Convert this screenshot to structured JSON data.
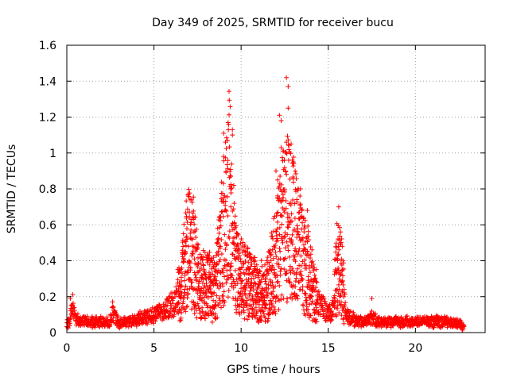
{
  "chart_data": {
    "type": "scatter",
    "title": "Day 349 of 2025, SRMTID for receiver bucu",
    "xlabel": "GPS time / hours",
    "ylabel": "SRMTID / TECUs",
    "xlim": [
      0,
      24
    ],
    "ylim": [
      0,
      1.6
    ],
    "x_ticks": [
      0,
      5,
      10,
      15,
      20
    ],
    "y_ticks": [
      0,
      0.2,
      0.4,
      0.6,
      0.8,
      1,
      1.2,
      1.4,
      1.6
    ],
    "x_tick_labels": [
      "0",
      "5",
      "10",
      "15",
      "20"
    ],
    "y_tick_labels": [
      "0",
      "0.2",
      "0.4",
      "0.6",
      "0.8",
      "1",
      "1.2",
      "1.4",
      "1.6"
    ],
    "grid": true,
    "marker": "plus",
    "color": "#ff0000",
    "series": [
      {
        "name": "SRMTID",
        "profile": [
          [
            0.0,
            0.05
          ],
          [
            0.2,
            0.07
          ],
          [
            0.3,
            0.16
          ],
          [
            0.5,
            0.07
          ],
          [
            1.0,
            0.06
          ],
          [
            1.5,
            0.06
          ],
          [
            2.0,
            0.06
          ],
          [
            2.5,
            0.06
          ],
          [
            2.6,
            0.12
          ],
          [
            3.0,
            0.05
          ],
          [
            3.5,
            0.06
          ],
          [
            4.0,
            0.07
          ],
          [
            4.5,
            0.09
          ],
          [
            5.0,
            0.1
          ],
          [
            5.5,
            0.12
          ],
          [
            6.0,
            0.15
          ],
          [
            6.5,
            0.22
          ],
          [
            6.8,
            0.42
          ],
          [
            7.2,
            0.5
          ],
          [
            7.5,
            0.28
          ],
          [
            8.0,
            0.26
          ],
          [
            8.5,
            0.25
          ],
          [
            9.0,
            0.55
          ],
          [
            9.3,
            0.8
          ],
          [
            9.7,
            0.35
          ],
          [
            10.0,
            0.3
          ],
          [
            10.5,
            0.26
          ],
          [
            11.0,
            0.22
          ],
          [
            11.5,
            0.24
          ],
          [
            12.0,
            0.42
          ],
          [
            12.4,
            0.6
          ],
          [
            12.8,
            0.65
          ],
          [
            13.2,
            0.5
          ],
          [
            13.6,
            0.4
          ],
          [
            14.0,
            0.3
          ],
          [
            14.5,
            0.16
          ],
          [
            15.0,
            0.1
          ],
          [
            15.3,
            0.14
          ],
          [
            15.5,
            0.38
          ],
          [
            15.8,
            0.3
          ],
          [
            16.0,
            0.1
          ],
          [
            16.5,
            0.07
          ],
          [
            17.0,
            0.06
          ],
          [
            17.5,
            0.08
          ],
          [
            18.0,
            0.06
          ],
          [
            19.0,
            0.06
          ],
          [
            20.0,
            0.06
          ],
          [
            21.0,
            0.06
          ],
          [
            22.0,
            0.06
          ],
          [
            22.5,
            0.05
          ],
          [
            22.8,
            0.03
          ]
        ],
        "notable_points": [
          [
            0.2,
            0.19
          ],
          [
            2.6,
            0.14
          ],
          [
            6.9,
            0.52
          ],
          [
            7.3,
            0.64
          ],
          [
            8.8,
            0.47
          ],
          [
            9.0,
            0.98
          ],
          [
            9.0,
            1.11
          ],
          [
            9.1,
            1.06
          ],
          [
            9.4,
            0.87
          ],
          [
            9.4,
            0.8
          ],
          [
            9.5,
            1.13
          ],
          [
            9.5,
            1.1
          ],
          [
            9.6,
            0.72
          ],
          [
            9.8,
            0.55
          ],
          [
            12.0,
            0.9
          ],
          [
            12.1,
            0.85
          ],
          [
            12.2,
            1.21
          ],
          [
            12.3,
            1.03
          ],
          [
            12.3,
            1.18
          ],
          [
            12.6,
            1.06
          ],
          [
            12.6,
            1.42
          ],
          [
            12.7,
            1.37
          ],
          [
            12.7,
            1.25
          ],
          [
            13.0,
            0.95
          ],
          [
            13.1,
            0.9
          ],
          [
            13.4,
            0.8
          ],
          [
            13.8,
            0.68
          ],
          [
            15.6,
            0.7
          ],
          [
            15.7,
            0.56
          ],
          [
            15.8,
            0.48
          ],
          [
            17.5,
            0.19
          ]
        ]
      }
    ]
  }
}
